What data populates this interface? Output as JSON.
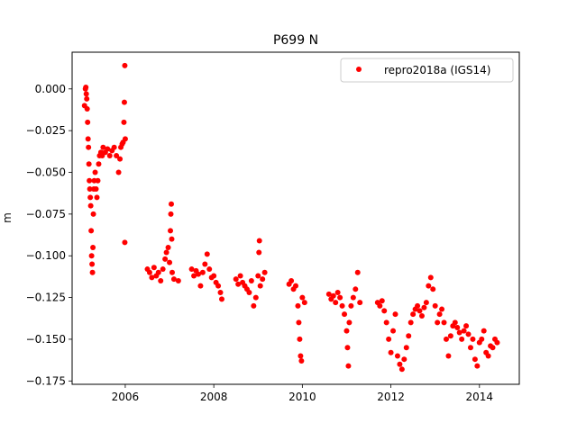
{
  "chart_data": {
    "type": "scatter",
    "title": "P699 N",
    "xlabel": "",
    "ylabel": "m",
    "xlim": [
      2004.8,
      2014.9
    ],
    "ylim": [
      -0.177,
      0.022
    ],
    "x_ticks": [
      2006,
      2008,
      2010,
      2012,
      2014
    ],
    "x_tick_labels": [
      "2006",
      "2008",
      "2010",
      "2012",
      "2014"
    ],
    "y_ticks": [
      0.0,
      -0.025,
      -0.05,
      -0.075,
      -0.1,
      -0.125,
      -0.15,
      -0.175
    ],
    "y_tick_labels": [
      "0.000",
      "−0.025",
      "−0.050",
      "−0.075",
      "−0.100",
      "−0.125",
      "−0.150",
      "−0.175"
    ],
    "legend": {
      "placement": "top-right"
    },
    "grid": false,
    "series": [
      {
        "name": "repro2018a (IGS14)",
        "color": "#ff0000",
        "marker": "circle",
        "points": [
          [
            2005.08,
            -0.01
          ],
          [
            2005.1,
            0.0
          ],
          [
            2005.11,
            0.001
          ],
          [
            2005.12,
            -0.003
          ],
          [
            2005.13,
            -0.006
          ],
          [
            2005.14,
            -0.012
          ],
          [
            2005.15,
            -0.02
          ],
          [
            2005.16,
            -0.03
          ],
          [
            2005.17,
            -0.035
          ],
          [
            2005.18,
            -0.045
          ],
          [
            2005.19,
            -0.055
          ],
          [
            2005.2,
            -0.06
          ],
          [
            2005.21,
            -0.065
          ],
          [
            2005.22,
            -0.07
          ],
          [
            2005.23,
            -0.085
          ],
          [
            2005.24,
            -0.1
          ],
          [
            2005.25,
            -0.105
          ],
          [
            2005.26,
            -0.11
          ],
          [
            2005.27,
            -0.095
          ],
          [
            2005.28,
            -0.075
          ],
          [
            2005.29,
            -0.06
          ],
          [
            2005.3,
            -0.055
          ],
          [
            2005.32,
            -0.05
          ],
          [
            2005.34,
            -0.06
          ],
          [
            2005.36,
            -0.065
          ],
          [
            2005.38,
            -0.055
          ],
          [
            2005.4,
            -0.045
          ],
          [
            2005.42,
            -0.04
          ],
          [
            2005.45,
            -0.038
          ],
          [
            2005.48,
            -0.04
          ],
          [
            2005.5,
            -0.035
          ],
          [
            2005.55,
            -0.038
          ],
          [
            2005.6,
            -0.036
          ],
          [
            2005.65,
            -0.04
          ],
          [
            2005.7,
            -0.037
          ],
          [
            2005.75,
            -0.035
          ],
          [
            2005.8,
            -0.04
          ],
          [
            2005.85,
            -0.05
          ],
          [
            2005.88,
            -0.042
          ],
          [
            2005.9,
            -0.035
          ],
          [
            2005.93,
            -0.033
          ],
          [
            2005.95,
            -0.032
          ],
          [
            2005.97,
            -0.02
          ],
          [
            2005.98,
            -0.008
          ],
          [
            2005.99,
            0.014
          ],
          [
            2005.99,
            -0.092
          ],
          [
            2006.0,
            -0.03
          ],
          [
            2006.5,
            -0.108
          ],
          [
            2006.55,
            -0.11
          ],
          [
            2006.6,
            -0.113
          ],
          [
            2006.65,
            -0.107
          ],
          [
            2006.7,
            -0.112
          ],
          [
            2006.75,
            -0.11
          ],
          [
            2006.8,
            -0.115
          ],
          [
            2006.85,
            -0.108
          ],
          [
            2006.9,
            -0.102
          ],
          [
            2006.93,
            -0.098
          ],
          [
            2006.97,
            -0.095
          ],
          [
            2007.0,
            -0.104
          ],
          [
            2007.02,
            -0.085
          ],
          [
            2007.03,
            -0.075
          ],
          [
            2007.04,
            -0.069
          ],
          [
            2007.05,
            -0.09
          ],
          [
            2007.06,
            -0.11
          ],
          [
            2007.1,
            -0.114
          ],
          [
            2007.2,
            -0.115
          ],
          [
            2007.5,
            -0.108
          ],
          [
            2007.55,
            -0.112
          ],
          [
            2007.6,
            -0.109
          ],
          [
            2007.65,
            -0.111
          ],
          [
            2007.7,
            -0.118
          ],
          [
            2007.75,
            -0.11
          ],
          [
            2007.8,
            -0.105
          ],
          [
            2007.85,
            -0.099
          ],
          [
            2007.9,
            -0.108
          ],
          [
            2007.95,
            -0.113
          ],
          [
            2008.0,
            -0.112
          ],
          [
            2008.05,
            -0.116
          ],
          [
            2008.1,
            -0.118
          ],
          [
            2008.15,
            -0.122
          ],
          [
            2008.18,
            -0.126
          ],
          [
            2008.5,
            -0.114
          ],
          [
            2008.55,
            -0.117
          ],
          [
            2008.6,
            -0.112
          ],
          [
            2008.65,
            -0.116
          ],
          [
            2008.7,
            -0.118
          ],
          [
            2008.75,
            -0.12
          ],
          [
            2008.8,
            -0.122
          ],
          [
            2008.85,
            -0.115
          ],
          [
            2008.9,
            -0.13
          ],
          [
            2008.95,
            -0.125
          ],
          [
            2009.0,
            -0.112
          ],
          [
            2009.02,
            -0.098
          ],
          [
            2009.03,
            -0.091
          ],
          [
            2009.05,
            -0.118
          ],
          [
            2009.1,
            -0.114
          ],
          [
            2009.15,
            -0.11
          ],
          [
            2009.7,
            -0.117
          ],
          [
            2009.75,
            -0.115
          ],
          [
            2009.8,
            -0.12
          ],
          [
            2009.85,
            -0.118
          ],
          [
            2009.9,
            -0.13
          ],
          [
            2009.92,
            -0.14
          ],
          [
            2009.94,
            -0.15
          ],
          [
            2009.96,
            -0.16
          ],
          [
            2009.98,
            -0.163
          ],
          [
            2010.0,
            -0.125
          ],
          [
            2010.05,
            -0.128
          ],
          [
            2010.6,
            -0.123
          ],
          [
            2010.65,
            -0.126
          ],
          [
            2010.7,
            -0.124
          ],
          [
            2010.75,
            -0.128
          ],
          [
            2010.8,
            -0.122
          ],
          [
            2010.85,
            -0.125
          ],
          [
            2010.9,
            -0.13
          ],
          [
            2010.95,
            -0.135
          ],
          [
            2011.0,
            -0.145
          ],
          [
            2011.02,
            -0.155
          ],
          [
            2011.04,
            -0.166
          ],
          [
            2011.06,
            -0.14
          ],
          [
            2011.1,
            -0.13
          ],
          [
            2011.15,
            -0.125
          ],
          [
            2011.2,
            -0.12
          ],
          [
            2011.25,
            -0.11
          ],
          [
            2011.3,
            -0.128
          ],
          [
            2011.7,
            -0.128
          ],
          [
            2011.75,
            -0.13
          ],
          [
            2011.8,
            -0.127
          ],
          [
            2011.85,
            -0.133
          ],
          [
            2011.9,
            -0.14
          ],
          [
            2011.95,
            -0.15
          ],
          [
            2012.0,
            -0.158
          ],
          [
            2012.05,
            -0.145
          ],
          [
            2012.1,
            -0.135
          ],
          [
            2012.15,
            -0.16
          ],
          [
            2012.2,
            -0.165
          ],
          [
            2012.25,
            -0.168
          ],
          [
            2012.3,
            -0.162
          ],
          [
            2012.35,
            -0.155
          ],
          [
            2012.4,
            -0.148
          ],
          [
            2012.45,
            -0.14
          ],
          [
            2012.5,
            -0.135
          ],
          [
            2012.55,
            -0.132
          ],
          [
            2012.6,
            -0.13
          ],
          [
            2012.65,
            -0.133
          ],
          [
            2012.7,
            -0.136
          ],
          [
            2012.75,
            -0.131
          ],
          [
            2012.8,
            -0.128
          ],
          [
            2012.85,
            -0.118
          ],
          [
            2012.9,
            -0.113
          ],
          [
            2012.95,
            -0.12
          ],
          [
            2013.0,
            -0.13
          ],
          [
            2013.05,
            -0.14
          ],
          [
            2013.1,
            -0.135
          ],
          [
            2013.15,
            -0.132
          ],
          [
            2013.2,
            -0.14
          ],
          [
            2013.25,
            -0.15
          ],
          [
            2013.3,
            -0.16
          ],
          [
            2013.35,
            -0.148
          ],
          [
            2013.4,
            -0.142
          ],
          [
            2013.45,
            -0.14
          ],
          [
            2013.5,
            -0.143
          ],
          [
            2013.55,
            -0.146
          ],
          [
            2013.6,
            -0.15
          ],
          [
            2013.65,
            -0.145
          ],
          [
            2013.7,
            -0.142
          ],
          [
            2013.75,
            -0.147
          ],
          [
            2013.8,
            -0.155
          ],
          [
            2013.85,
            -0.15
          ],
          [
            2013.9,
            -0.162
          ],
          [
            2013.95,
            -0.166
          ],
          [
            2014.0,
            -0.152
          ],
          [
            2014.05,
            -0.15
          ],
          [
            2014.1,
            -0.145
          ],
          [
            2014.15,
            -0.158
          ],
          [
            2014.2,
            -0.16
          ],
          [
            2014.25,
            -0.154
          ],
          [
            2014.3,
            -0.155
          ],
          [
            2014.35,
            -0.15
          ],
          [
            2014.4,
            -0.152
          ]
        ]
      }
    ]
  }
}
